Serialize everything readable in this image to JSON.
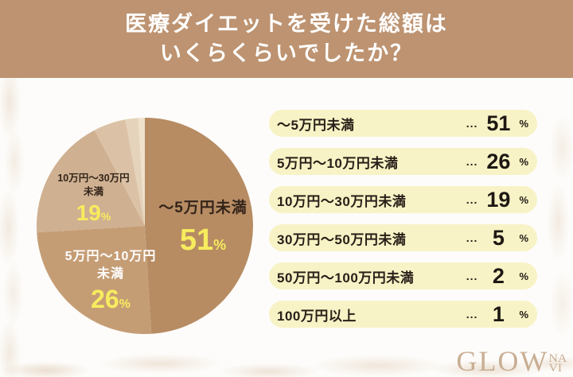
{
  "header": {
    "title_line1": "医療ダイエットを受けた総額は",
    "title_line2": "いくらくらいでしたか？"
  },
  "chart_data": {
    "type": "pie",
    "title": "医療ダイエットを受けた総額はいくらくらいでしたか？",
    "categories": [
      "～5万円未満",
      "5万円～10万円未満",
      "10万円～30万円未満",
      "30万円～50万円未満",
      "50万円～100万円未満",
      "100万円以上"
    ],
    "values": [
      51,
      26,
      19,
      5,
      2,
      1
    ],
    "unit": "%",
    "colors": [
      "#b78c63",
      "#c59d75",
      "#cfb091",
      "#dbc2a6",
      "#e6d3bb",
      "#efe2cd"
    ],
    "start_angle": "top",
    "direction": "clockwise",
    "legend_position": "right",
    "in_pie_labels": [
      {
        "line1": "～5万円未満",
        "line2": "",
        "pct": "51",
        "unit": "%"
      },
      {
        "line1": "5万円～10万円",
        "line2": "未満",
        "pct": "26",
        "unit": "%"
      },
      {
        "line1": "10万円～30万円",
        "line2": "未満",
        "pct": "19",
        "unit": "%"
      }
    ]
  },
  "legend": {
    "rows": [
      {
        "label": "～5万円未満",
        "dots": "...",
        "value": "51",
        "unit": "%"
      },
      {
        "label": "5万円～10万円未満",
        "dots": "...",
        "value": "26",
        "unit": "%"
      },
      {
        "label": "10万円～30万円未満",
        "dots": "...",
        "value": "19",
        "unit": "%"
      },
      {
        "label": "30万円～50万円未満",
        "dots": "...",
        "value": "5",
        "unit": "%"
      },
      {
        "label": "50万円～100万円未満",
        "dots": "...",
        "value": "2",
        "unit": "%"
      },
      {
        "label": "100万円以上",
        "dots": "...",
        "value": "1",
        "unit": "%"
      }
    ]
  },
  "logo": {
    "main": "GLOW",
    "sub_top": "NA",
    "sub_bottom": "VI"
  },
  "colors": {
    "header_bg": "#bd9371",
    "legend_pill_bg": "#f8f3c6",
    "percent_yellow": "#f7ec5e",
    "text_dark": "#292019",
    "text_white": "#ffffff",
    "logo": "#c9ae94",
    "page_bg": "#fdfcfa"
  }
}
